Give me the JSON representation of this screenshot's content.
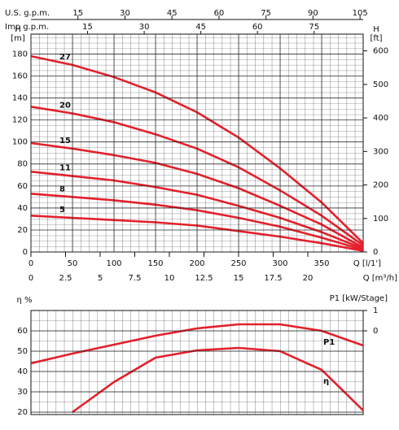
{
  "chart_data": [
    {
      "type": "line",
      "xlabel": "Q [l/1']",
      "ylabel": "H",
      "yunit": "[m]",
      "y2label": "H",
      "y2unit": "[ft]",
      "x2label": "Q [m³/h]",
      "x3label": "U.S. g.p.m.",
      "x4label": "Imp g.p.m.",
      "x": [
        0,
        50,
        100,
        150,
        200,
        250,
        300,
        350,
        400
      ],
      "xlim": [
        0,
        400
      ],
      "xticks": [
        0,
        50,
        100,
        150,
        200,
        250,
        300,
        350
      ],
      "x2lim": [
        0,
        24
      ],
      "x2ticks": [
        0,
        2.5,
        5,
        7.5,
        10,
        12.5,
        15,
        17.5,
        20
      ],
      "x3lim": [
        0,
        106
      ],
      "x3ticks": [
        15,
        30,
        45,
        60,
        75,
        90,
        105
      ],
      "x4lim": [
        0,
        88
      ],
      "x4ticks": [
        15,
        30,
        45,
        60,
        75
      ],
      "ylim": [
        0,
        198
      ],
      "yticks": [
        0,
        20,
        40,
        60,
        80,
        100,
        120,
        140,
        160,
        180
      ],
      "y2lim": [
        0,
        650
      ],
      "y2ticks": [
        0,
        100,
        200,
        300,
        400,
        500,
        600
      ],
      "grid": true,
      "series": [
        {
          "name": "27",
          "color": "#e3202b",
          "values": [
            178,
            170,
            159,
            145,
            127,
            104,
            76,
            45,
            8
          ]
        },
        {
          "name": "20",
          "color": "#e3202b",
          "values": [
            132,
            126,
            118,
            107,
            94,
            77,
            56,
            33,
            6
          ]
        },
        {
          "name": "15",
          "color": "#e3202b",
          "values": [
            99,
            94,
            88,
            81,
            71,
            58,
            42,
            25,
            4
          ]
        },
        {
          "name": "11",
          "color": "#e3202b",
          "values": [
            73,
            69,
            65,
            59,
            52,
            42,
            31,
            18,
            3
          ]
        },
        {
          "name": "8",
          "color": "#e3202b",
          "values": [
            53,
            50,
            47,
            43,
            38,
            31,
            23,
            13,
            2
          ]
        },
        {
          "name": "5",
          "color": "#e3202b",
          "values": [
            33,
            31,
            29,
            27,
            24,
            19,
            14,
            8,
            1
          ]
        }
      ]
    },
    {
      "type": "line",
      "ylabel": "η %",
      "y2label": "P1 [kW/Stage]",
      "x": [
        0,
        50,
        100,
        150,
        200,
        250,
        300,
        350,
        400
      ],
      "xlim": [
        0,
        400
      ],
      "ylim": [
        18.8,
        70
      ],
      "yticks": [
        20,
        30,
        40,
        50,
        60
      ],
      "y2lim": [
        -4.12,
        1
      ],
      "y2ticks": [
        0,
        1
      ],
      "grid": true,
      "series": [
        {
          "name": "P1",
          "color": "#e3202b",
          "axis": "y2",
          "values": [
            -1.6,
            -1.12,
            -0.68,
            -0.24,
            0.12,
            0.32,
            0.32,
            0,
            -0.72
          ]
        },
        {
          "name": "η",
          "color": "#e3202b",
          "values": [
            null,
            20,
            34.8,
            46.8,
            50.4,
            51.6,
            50,
            40.8,
            20.8
          ]
        }
      ]
    }
  ]
}
